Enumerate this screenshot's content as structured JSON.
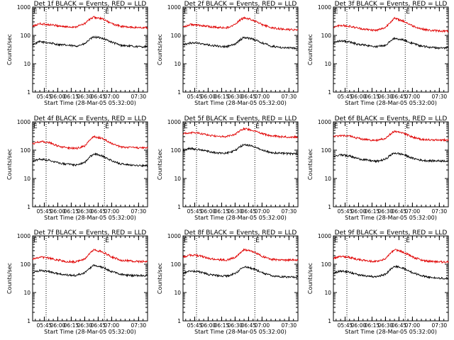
{
  "figure": {
    "xlabel": "Start Time (28-Mar-05 05:32:00)",
    "ylabel": "Counts/sec",
    "series_names": [
      "Events",
      "LLD"
    ],
    "series_colors": {
      "Events": "#000000",
      "LLD": "#e00000"
    }
  },
  "chart_data": [
    {
      "type": "line",
      "title": "Det 1f BLACK = Events, RED = LLD",
      "xlabel": "Start Time (28-Mar-05 05:32:00)",
      "ylabel": "Counts/sec",
      "yscale": "log",
      "ylim": [
        1,
        1000
      ],
      "yticks": [
        "1",
        "10",
        "100",
        "1000"
      ],
      "xlim": [
        "05:32",
        "07:40"
      ],
      "xticks": [
        "05:45",
        "06:00",
        "06:15",
        "06:30",
        "06:45",
        "07:00",
        "07:30"
      ],
      "markers": [
        {
          "label": "E",
          "x": "05:32"
        },
        {
          "label": "E",
          "x": "06:52"
        }
      ],
      "vlines": [
        "05:47",
        "06:52"
      ],
      "x": [
        "05:32",
        "05:40",
        "05:50",
        "06:00",
        "06:10",
        "06:20",
        "06:30",
        "06:35",
        "06:40",
        "06:50",
        "07:00",
        "07:10",
        "07:20",
        "07:30",
        "07:40"
      ],
      "series": [
        {
          "name": "Events",
          "color": "#000000",
          "values": [
            48,
            60,
            55,
            48,
            45,
            42,
            50,
            70,
            88,
            80,
            58,
            45,
            42,
            40,
            40
          ]
        },
        {
          "name": "LLD",
          "color": "#e00000",
          "values": [
            210,
            260,
            240,
            220,
            200,
            200,
            260,
            360,
            440,
            380,
            260,
            210,
            195,
            190,
            185
          ]
        }
      ]
    },
    {
      "type": "line",
      "title": "Det 2f BLACK = Events, RED = LLD",
      "xlabel": "Start Time (28-Mar-05 05:32:00)",
      "ylabel": "Counts/sec",
      "yscale": "log",
      "ylim": [
        1,
        1000
      ],
      "yticks": [
        "1",
        "10",
        "100",
        "1000"
      ],
      "xlim": [
        "05:32",
        "07:40"
      ],
      "xticks": [
        "05:45",
        "06:00",
        "06:15",
        "06:30",
        "06:45",
        "07:00",
        "07:30"
      ],
      "markers": [
        {
          "label": "E",
          "x": "05:32"
        },
        {
          "label": "E",
          "x": "06:52"
        }
      ],
      "vlines": [
        "05:47",
        "06:52"
      ],
      "x": [
        "05:32",
        "05:40",
        "05:50",
        "06:00",
        "06:10",
        "06:20",
        "06:30",
        "06:35",
        "06:40",
        "06:50",
        "07:00",
        "07:10",
        "07:20",
        "07:30",
        "07:40"
      ],
      "series": [
        {
          "name": "Events",
          "color": "#000000",
          "values": [
            45,
            55,
            52,
            46,
            42,
            40,
            48,
            68,
            85,
            75,
            55,
            42,
            38,
            36,
            35
          ]
        },
        {
          "name": "LLD",
          "color": "#e00000",
          "values": [
            200,
            240,
            230,
            210,
            190,
            185,
            240,
            340,
            420,
            350,
            240,
            190,
            170,
            160,
            155
          ]
        }
      ]
    },
    {
      "type": "line",
      "title": "Det 3f BLACK = Events, RED = LLD",
      "xlabel": "Start Time (28-Mar-05 05:32:00)",
      "ylabel": "Counts/sec",
      "yscale": "log",
      "ylim": [
        1,
        1000
      ],
      "yticks": [
        "1",
        "10",
        "100",
        "1000"
      ],
      "xlim": [
        "05:32",
        "07:40"
      ],
      "xticks": [
        "05:45",
        "06:00",
        "06:15",
        "06:30",
        "06:45",
        "07:00",
        "07:30"
      ],
      "markers": [
        {
          "label": "E",
          "x": "05:32"
        },
        {
          "label": "E",
          "x": "06:52"
        }
      ],
      "vlines": [
        "05:47",
        "06:52"
      ],
      "x": [
        "05:32",
        "05:40",
        "05:50",
        "06:00",
        "06:10",
        "06:20",
        "06:30",
        "06:35",
        "06:40",
        "06:50",
        "07:00",
        "07:10",
        "07:20",
        "07:30",
        "07:40"
      ],
      "series": [
        {
          "name": "Events",
          "color": "#000000",
          "values": [
            55,
            65,
            58,
            48,
            44,
            40,
            46,
            62,
            80,
            70,
            52,
            42,
            38,
            36,
            35
          ]
        },
        {
          "name": "LLD",
          "color": "#e00000",
          "values": [
            190,
            230,
            210,
            180,
            160,
            150,
            190,
            290,
            400,
            320,
            220,
            170,
            150,
            145,
            140
          ]
        }
      ]
    },
    {
      "type": "line",
      "title": "Det 4f BLACK = Events, RED = LLD",
      "xlabel": "Start Time (28-Mar-05 05:32:00)",
      "ylabel": "Counts/sec",
      "yscale": "log",
      "ylim": [
        1,
        1000
      ],
      "yticks": [
        "1",
        "10",
        "100",
        "1000"
      ],
      "xlim": [
        "05:32",
        "07:40"
      ],
      "xticks": [
        "05:45",
        "06:00",
        "06:15",
        "06:30",
        "06:45",
        "07:00",
        "07:30"
      ],
      "markers": [
        {
          "label": "E",
          "x": "05:32"
        },
        {
          "label": "E",
          "x": "06:52"
        }
      ],
      "vlines": [
        "05:47",
        "06:52"
      ],
      "x": [
        "05:32",
        "05:40",
        "05:50",
        "06:00",
        "06:10",
        "06:20",
        "06:30",
        "06:35",
        "06:40",
        "06:50",
        "07:00",
        "07:10",
        "07:20",
        "07:30",
        "07:40"
      ],
      "series": [
        {
          "name": "Events",
          "color": "#000000",
          "values": [
            40,
            48,
            44,
            36,
            32,
            30,
            36,
            55,
            75,
            62,
            42,
            33,
            30,
            29,
            28
          ]
        },
        {
          "name": "LLD",
          "color": "#e00000",
          "values": [
            170,
            200,
            190,
            140,
            120,
            115,
            140,
            220,
            300,
            260,
            170,
            130,
            125,
            120,
            120
          ]
        }
      ]
    },
    {
      "type": "line",
      "title": "Det 5f BLACK = Events, RED = LLD",
      "xlabel": "Start Time (28-Mar-05 05:32:00)",
      "ylabel": "Counts/sec",
      "yscale": "log",
      "ylim": [
        1,
        1000
      ],
      "yticks": [
        "1",
        "10",
        "100",
        "1000"
      ],
      "xlim": [
        "05:32",
        "07:40"
      ],
      "xticks": [
        "05:45",
        "06:00",
        "06:15",
        "06:30",
        "06:45",
        "07:00",
        "07:30"
      ],
      "markers": [
        {
          "label": "E",
          "x": "05:32"
        },
        {
          "label": "E",
          "x": "06:52"
        }
      ],
      "vlines": [
        "05:47",
        "06:52"
      ],
      "x": [
        "05:32",
        "05:40",
        "05:50",
        "06:00",
        "06:10",
        "06:20",
        "06:30",
        "06:35",
        "06:40",
        "06:50",
        "07:00",
        "07:10",
        "07:20",
        "07:30",
        "07:40"
      ],
      "series": [
        {
          "name": "Events",
          "color": "#000000",
          "values": [
            100,
            115,
            105,
            90,
            80,
            78,
            95,
            130,
            160,
            140,
            100,
            82,
            78,
            75,
            75
          ]
        },
        {
          "name": "LLD",
          "color": "#e00000",
          "values": [
            380,
            420,
            400,
            340,
            310,
            300,
            360,
            480,
            580,
            500,
            380,
            320,
            300,
            295,
            290
          ]
        }
      ]
    },
    {
      "type": "line",
      "title": "Det 6f BLACK = Events, RED = LLD",
      "xlabel": "Start Time (28-Mar-05 05:32:00)",
      "ylabel": "Counts/sec",
      "yscale": "log",
      "ylim": [
        1,
        1000
      ],
      "yticks": [
        "1",
        "10",
        "100",
        "1000"
      ],
      "xlim": [
        "05:32",
        "07:40"
      ],
      "xticks": [
        "05:45",
        "06:00",
        "06:15",
        "06:30",
        "06:45",
        "07:00",
        "07:30"
      ],
      "markers": [
        {
          "label": "E",
          "x": "05:32"
        },
        {
          "label": "E",
          "x": "06:52"
        }
      ],
      "vlines": [
        "05:47",
        "06:52"
      ],
      "x": [
        "05:32",
        "05:40",
        "05:50",
        "06:00",
        "06:10",
        "06:20",
        "06:30",
        "06:35",
        "06:40",
        "06:50",
        "07:00",
        "07:10",
        "07:20",
        "07:30",
        "07:40"
      ],
      "series": [
        {
          "name": "Events",
          "color": "#000000",
          "values": [
            60,
            68,
            62,
            50,
            44,
            40,
            48,
            65,
            80,
            70,
            52,
            44,
            42,
            42,
            42
          ]
        },
        {
          "name": "LLD",
          "color": "#e00000",
          "values": [
            300,
            330,
            310,
            260,
            230,
            220,
            260,
            360,
            460,
            400,
            290,
            240,
            230,
            230,
            230
          ]
        }
      ]
    },
    {
      "type": "line",
      "title": "Det 7f BLACK = Events, RED = LLD",
      "xlabel": "Start Time (28-Mar-05 05:32:00)",
      "ylabel": "Counts/sec",
      "yscale": "log",
      "ylim": [
        1,
        1000
      ],
      "yticks": [
        "1",
        "10",
        "100",
        "1000"
      ],
      "xlim": [
        "05:32",
        "07:40"
      ],
      "xticks": [
        "05:45",
        "06:00",
        "06:15",
        "06:30",
        "06:45",
        "07:00",
        "07:30"
      ],
      "markers": [
        {
          "label": "E",
          "x": "05:32"
        },
        {
          "label": "E",
          "x": "06:52"
        }
      ],
      "vlines": [
        "05:47",
        "06:52"
      ],
      "x": [
        "05:32",
        "05:40",
        "05:50",
        "06:00",
        "06:10",
        "06:20",
        "06:30",
        "06:35",
        "06:40",
        "06:50",
        "07:00",
        "07:10",
        "07:20",
        "07:30",
        "07:40"
      ],
      "series": [
        {
          "name": "Events",
          "color": "#000000",
          "values": [
            50,
            60,
            55,
            46,
            42,
            40,
            50,
            70,
            90,
            78,
            55,
            44,
            40,
            40,
            40
          ]
        },
        {
          "name": "LLD",
          "color": "#e00000",
          "values": [
            150,
            180,
            165,
            140,
            125,
            120,
            150,
            230,
            320,
            270,
            180,
            140,
            130,
            125,
            125
          ]
        }
      ]
    },
    {
      "type": "line",
      "title": "Det 8f BLACK = Events, RED = LLD",
      "xlabel": "Start Time (28-Mar-05 05:32:00)",
      "ylabel": "Counts/sec",
      "yscale": "log",
      "ylim": [
        1,
        1000
      ],
      "yticks": [
        "1",
        "10",
        "100",
        "1000"
      ],
      "xlim": [
        "05:32",
        "07:40"
      ],
      "xticks": [
        "05:45",
        "06:00",
        "06:15",
        "06:30",
        "06:45",
        "07:00",
        "07:30"
      ],
      "markers": [
        {
          "label": "E",
          "x": "05:32"
        },
        {
          "label": "E",
          "x": "06:52"
        }
      ],
      "vlines": [
        "05:47",
        "06:52"
      ],
      "x": [
        "05:32",
        "05:40",
        "05:50",
        "06:00",
        "06:10",
        "06:20",
        "06:30",
        "06:35",
        "06:40",
        "06:50",
        "07:00",
        "07:10",
        "07:20",
        "07:30",
        "07:40"
      ],
      "series": [
        {
          "name": "Events",
          "color": "#000000",
          "values": [
            48,
            58,
            54,
            44,
            40,
            38,
            46,
            62,
            80,
            70,
            50,
            40,
            36,
            35,
            35
          ]
        },
        {
          "name": "LLD",
          "color": "#e00000",
          "values": [
            180,
            210,
            200,
            160,
            145,
            140,
            170,
            240,
            330,
            280,
            190,
            150,
            140,
            140,
            140
          ]
        }
      ]
    },
    {
      "type": "line",
      "title": "Det 9f BLACK = Events, RED = LLD",
      "xlabel": "Start Time (28-Mar-05 05:32:00)",
      "ylabel": "Counts/sec",
      "yscale": "log",
      "ylim": [
        1,
        1000
      ],
      "yticks": [
        "1",
        "10",
        "100",
        "1000"
      ],
      "xlim": [
        "05:32",
        "07:40"
      ],
      "xticks": [
        "05:45",
        "06:00",
        "06:15",
        "06:30",
        "06:45",
        "07:00",
        "07:30"
      ],
      "markers": [
        {
          "label": "E",
          "x": "05:32"
        },
        {
          "label": "E",
          "x": "06:52"
        }
      ],
      "vlines": [
        "05:47",
        "06:52"
      ],
      "x": [
        "05:32",
        "05:40",
        "05:50",
        "06:00",
        "06:10",
        "06:20",
        "06:30",
        "06:35",
        "06:40",
        "06:50",
        "07:00",
        "07:10",
        "07:20",
        "07:30",
        "07:40"
      ],
      "series": [
        {
          "name": "Events",
          "color": "#000000",
          "values": [
            48,
            58,
            52,
            42,
            38,
            36,
            44,
            62,
            85,
            72,
            50,
            40,
            34,
            32,
            32
          ]
        },
        {
          "name": "LLD",
          "color": "#e00000",
          "values": [
            160,
            190,
            175,
            145,
            130,
            125,
            155,
            230,
            320,
            270,
            180,
            140,
            125,
            120,
            120
          ]
        }
      ]
    }
  ]
}
